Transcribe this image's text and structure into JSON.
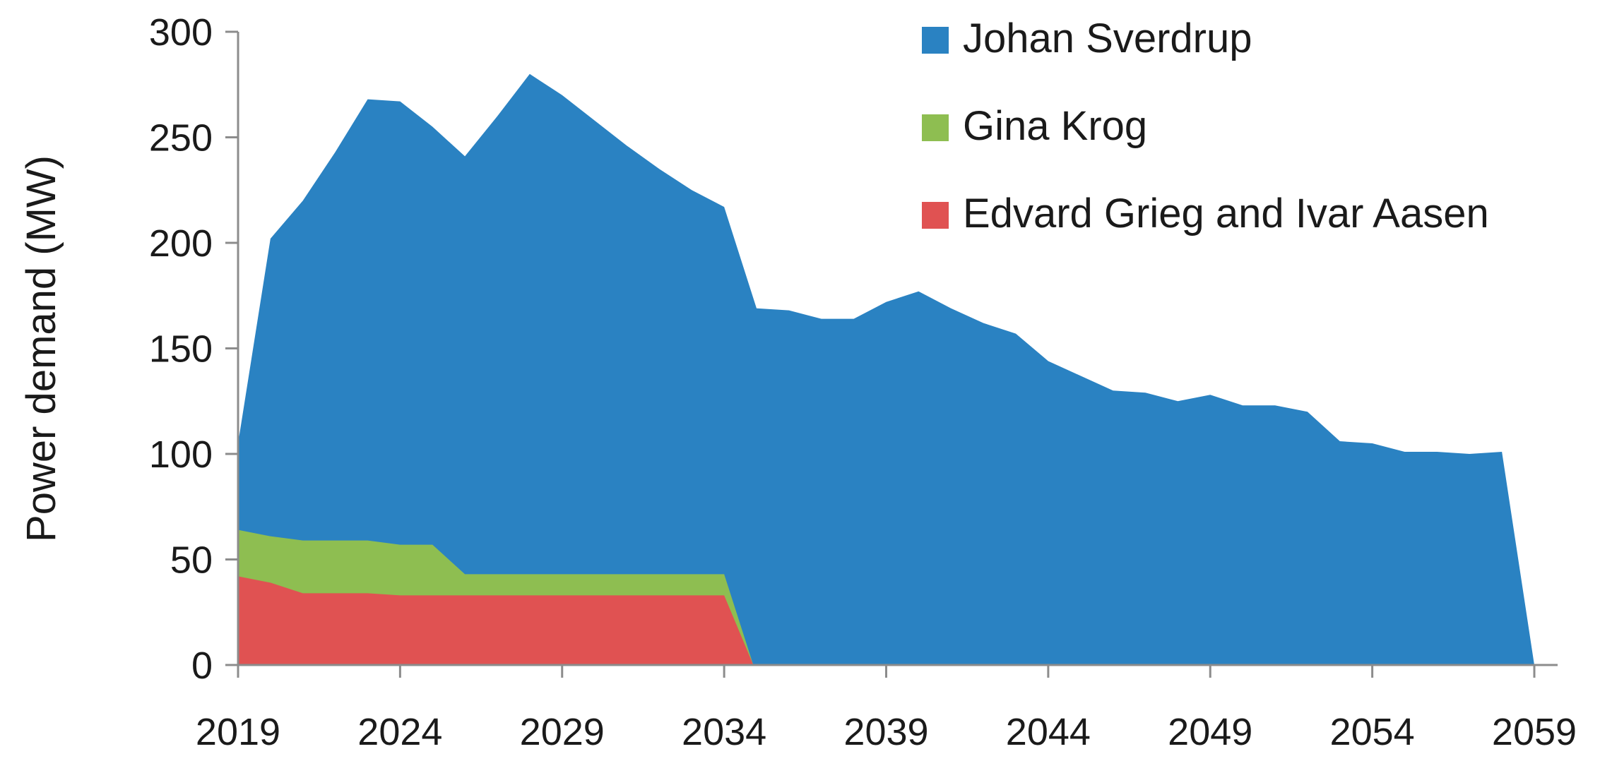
{
  "chart_data": {
    "type": "area",
    "stacked": true,
    "ylabel": "Power demand (MW)",
    "xlabel": "",
    "ylim": [
      0,
      300
    ],
    "xlim": [
      2019,
      2059
    ],
    "yticks": [
      0,
      50,
      100,
      150,
      200,
      250,
      300
    ],
    "xticks": [
      2019,
      2024,
      2029,
      2034,
      2039,
      2044,
      2049,
      2054,
      2059
    ],
    "grid": false,
    "legend_position": "top-right",
    "series": [
      {
        "name": "Edvard Grieg and Ivar Aasen",
        "color": "#e05252",
        "points": [
          [
            2019,
            42
          ],
          [
            2020,
            39
          ],
          [
            2021,
            34
          ],
          [
            2022,
            34
          ],
          [
            2023,
            34
          ],
          [
            2024,
            33
          ],
          [
            2025,
            33
          ],
          [
            2026,
            33
          ],
          [
            2027,
            33
          ],
          [
            2028,
            33
          ],
          [
            2029,
            33
          ],
          [
            2030,
            33
          ],
          [
            2031,
            33
          ],
          [
            2032,
            33
          ],
          [
            2033,
            33
          ],
          [
            2034,
            33
          ],
          [
            2034.9,
            0
          ],
          [
            2059,
            0
          ]
        ]
      },
      {
        "name": "Gina Krog",
        "color": "#8ebe51",
        "points": [
          [
            2019,
            22
          ],
          [
            2020,
            22
          ],
          [
            2021,
            25
          ],
          [
            2022,
            25
          ],
          [
            2023,
            25
          ],
          [
            2024,
            24
          ],
          [
            2025,
            24
          ],
          [
            2026,
            10
          ],
          [
            2027,
            10
          ],
          [
            2028,
            10
          ],
          [
            2029,
            10
          ],
          [
            2030,
            10
          ],
          [
            2031,
            10
          ],
          [
            2032,
            10
          ],
          [
            2033,
            10
          ],
          [
            2034,
            10
          ],
          [
            2034.9,
            0
          ],
          [
            2059,
            0
          ]
        ]
      },
      {
        "name": "Johan Sverdrup",
        "color": "#2a82c2",
        "total_points": [
          [
            2019,
            105
          ],
          [
            2020,
            202
          ],
          [
            2021,
            220
          ],
          [
            2022,
            243
          ],
          [
            2023,
            268
          ],
          [
            2024,
            267
          ],
          [
            2025,
            255
          ],
          [
            2026,
            241
          ],
          [
            2027,
            260
          ],
          [
            2028,
            280
          ],
          [
            2029,
            270
          ],
          [
            2030,
            258
          ],
          [
            2031,
            246
          ],
          [
            2032,
            235
          ],
          [
            2033,
            225
          ],
          [
            2034,
            217
          ],
          [
            2035,
            169
          ],
          [
            2036,
            168
          ],
          [
            2037,
            164
          ],
          [
            2038,
            164
          ],
          [
            2039,
            172
          ],
          [
            2040,
            177
          ],
          [
            2041,
            169
          ],
          [
            2042,
            162
          ],
          [
            2043,
            157
          ],
          [
            2044,
            144
          ],
          [
            2045,
            137
          ],
          [
            2046,
            130
          ],
          [
            2047,
            129
          ],
          [
            2048,
            125
          ],
          [
            2049,
            128
          ],
          [
            2050,
            123
          ],
          [
            2051,
            123
          ],
          [
            2052,
            120
          ],
          [
            2053,
            106
          ],
          [
            2054,
            105
          ],
          [
            2055,
            101
          ],
          [
            2056,
            101
          ],
          [
            2057,
            100
          ],
          [
            2058,
            101
          ],
          [
            2059,
            0
          ]
        ]
      }
    ],
    "legend_order": [
      "Johan Sverdrup",
      "Gina Krog",
      "Edvard Grieg and Ivar Aasen"
    ]
  }
}
